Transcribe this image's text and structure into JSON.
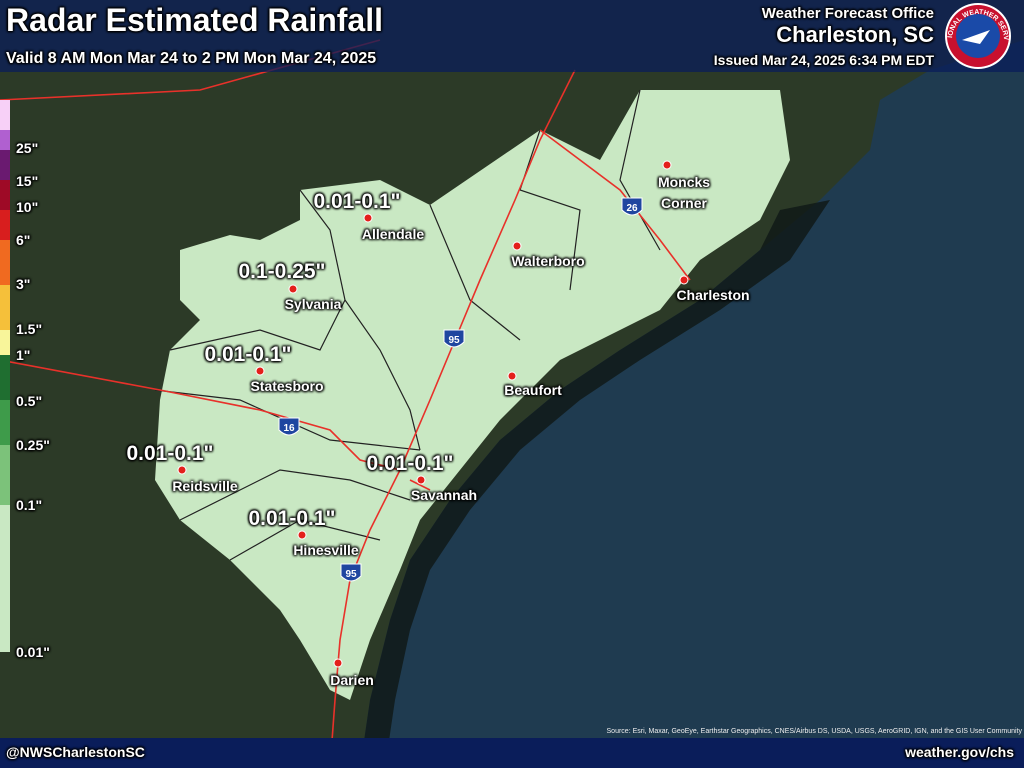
{
  "header": {
    "title": "Radar Estimated Rainfall",
    "subtitle": "Valid 8 AM Mon Mar 24 to 2 PM Mon Mar 24, 2025",
    "office": "Weather Forecast Office",
    "location": "Charleston, SC",
    "issued": "Issued Mar 24, 2025 6:34 PM EDT",
    "logo_text": "NATIONAL WEATHER SERVICE"
  },
  "legend": {
    "labels": [
      "25\"",
      "15\"",
      "10\"",
      "6\"",
      "3\"",
      "1.5\"",
      "1\"",
      "0.5\"",
      "0.25\"",
      "0.1\"",
      "0.01\""
    ]
  },
  "map": {
    "cities": [
      "Allendale",
      "Walterboro",
      "Moncks Corner",
      "Charleston",
      "Sylvania",
      "Statesboro",
      "Beaufort",
      "Reidsville",
      "Savannah",
      "Hinesville",
      "Darien"
    ],
    "rainfall_labels": [
      "0.01-0.1\"",
      "0.1-0.25\"",
      "0.01-0.1\"",
      "0.01-0.1\"",
      "0.01-0.1\"",
      "0.01-0.1\""
    ],
    "interstates": [
      "26",
      "95",
      "16",
      "95"
    ]
  },
  "footer": {
    "handle": "@NWSCharlestonSC",
    "website": "weather.gov/chs",
    "source": "Source: Esri, Maxar, GeoEye, Earthstar Geographics, CNES/Airbus DS, USDA, USGS, AeroGRID, IGN, and the GIS User Community"
  }
}
